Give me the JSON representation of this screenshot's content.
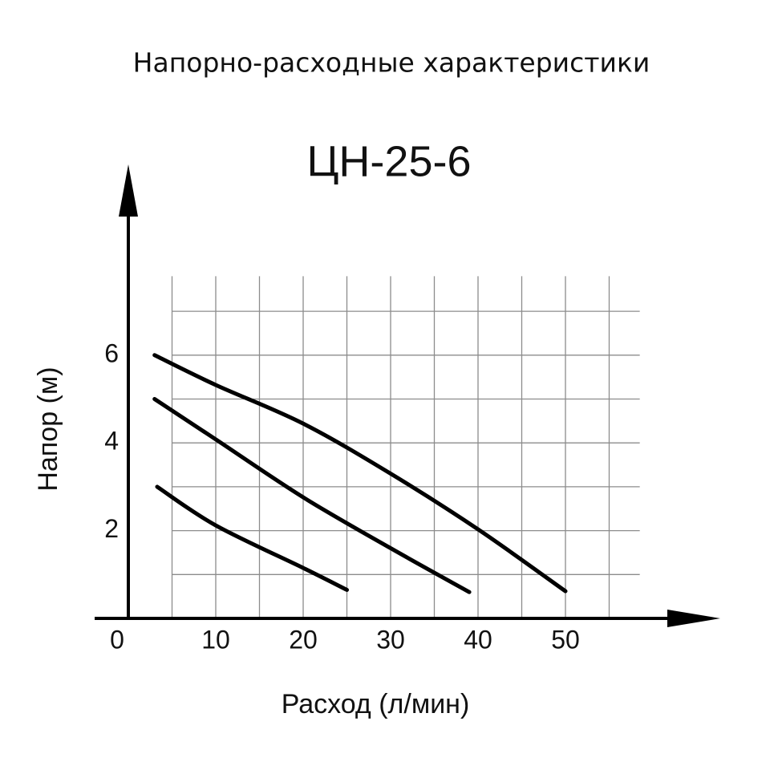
{
  "chart_data": {
    "type": "line",
    "title": "Напорно-расходные характеристики",
    "subtitle": "ЦН-25-6",
    "x_label": "Расход (л/мин)",
    "y_label": "Напор (м)",
    "xlim": [
      0,
      58.5
    ],
    "ylim": [
      0,
      7.8
    ],
    "xticks": [
      0,
      10,
      20,
      30,
      40,
      50
    ],
    "yticks": [
      2,
      4,
      6
    ],
    "x_grid": [
      5,
      10,
      15,
      20,
      25,
      30,
      35,
      40,
      45,
      50,
      55
    ],
    "y_grid": [
      1,
      2,
      3,
      4,
      5,
      6,
      7
    ],
    "grid": true,
    "series": [
      {
        "color": "#000000",
        "x": [
          3,
          10,
          20,
          30,
          40,
          50
        ],
        "values": [
          6.0,
          5.32,
          4.44,
          3.3,
          2.03,
          0.62
        ]
      },
      {
        "color": "#000000",
        "x": [
          3,
          10,
          20,
          30,
          39
        ],
        "values": [
          5.0,
          4.08,
          2.76,
          1.6,
          0.6
        ]
      },
      {
        "color": "#000000",
        "x": [
          3.3,
          10,
          20,
          25
        ],
        "values": [
          3.0,
          2.12,
          1.15,
          0.65
        ]
      }
    ]
  }
}
